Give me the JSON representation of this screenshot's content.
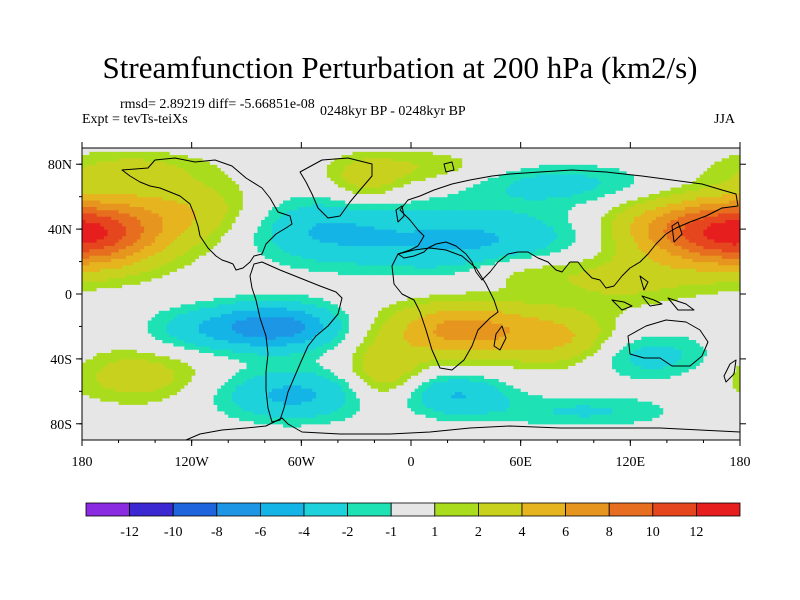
{
  "title": "Streamfunction Perturbation at 200 hPa (km2/s)",
  "stats": "rmsd= 2.89219 diff= -5.66851e-08",
  "experiment": "Expt = tevTs-teiXs",
  "period": "0248kyr BP - 0248kyr BP",
  "season": "JJA",
  "chart_data": {
    "type": "heatmap",
    "projection": "cylindrical-equidistant",
    "variable": "Streamfunction Perturbation at 200 hPa",
    "units": "km2/s",
    "xlim": [
      -180,
      180
    ],
    "ylim": [
      -90,
      90
    ],
    "x_ticks": [
      {
        "value": -180,
        "label": "180"
      },
      {
        "value": -120,
        "label": "120W"
      },
      {
        "value": -60,
        "label": "60W"
      },
      {
        "value": 0,
        "label": "0"
      },
      {
        "value": 60,
        "label": "60E"
      },
      {
        "value": 120,
        "label": "120E"
      },
      {
        "value": 180,
        "label": "180"
      }
    ],
    "y_ticks": [
      {
        "value": 80,
        "label": "80N"
      },
      {
        "value": 40,
        "label": "40N"
      },
      {
        "value": 0,
        "label": "0"
      },
      {
        "value": -40,
        "label": "40S"
      },
      {
        "value": -80,
        "label": "80S"
      }
    ],
    "colorbar": {
      "colors": [
        "#8a2be2",
        "#3c28d2",
        "#1e64dc",
        "#1e96e6",
        "#14b4e6",
        "#1ed2dc",
        "#1ee1b4",
        "#e6e6e6",
        "#aadc1e",
        "#c8d21e",
        "#e6b41e",
        "#e6961e",
        "#e66e1e",
        "#e6461e",
        "#e61e1e"
      ],
      "labels": [
        "-12",
        "-10",
        "-8",
        "-6",
        "-4",
        "-2",
        "-1",
        "1",
        "2",
        "4",
        "6",
        "8",
        "10",
        "12"
      ]
    },
    "levels": [
      -12,
      -10,
      -8,
      -6,
      -4,
      -2,
      -1,
      1,
      2,
      4,
      6,
      8,
      10,
      12
    ],
    "anomalies": [
      {
        "lon": -170,
        "lat": 38,
        "amp": 7.5,
        "slon": 28,
        "slat": 16
      },
      {
        "lon": -120,
        "lat": 52,
        "amp": 3,
        "slon": 25,
        "slat": 14
      },
      {
        "lon": -155,
        "lat": 78,
        "amp": 2.2,
        "slon": 30,
        "slat": 8
      },
      {
        "lon": -25,
        "lat": 70,
        "amp": 2.5,
        "slon": 14,
        "slat": 10
      },
      {
        "lon": 5,
        "lat": 78,
        "amp": 2,
        "slon": 30,
        "slat": 8
      },
      {
        "lon": -50,
        "lat": 40,
        "amp": -3.5,
        "slon": 28,
        "slat": 14
      },
      {
        "lon": 30,
        "lat": 33,
        "amp": -4.5,
        "slon": 45,
        "slat": 14
      },
      {
        "lon": 80,
        "lat": 68,
        "amp": -2.6,
        "slon": 38,
        "slat": 9
      },
      {
        "lon": 165,
        "lat": 38,
        "amp": 7,
        "slon": 28,
        "slat": 14
      },
      {
        "lon": 130,
        "lat": 42,
        "amp": 2.5,
        "slon": 22,
        "slat": 12
      },
      {
        "lon": 115,
        "lat": 10,
        "amp": 2.6,
        "slon": 30,
        "slat": 12
      },
      {
        "lon": 60,
        "lat": 15,
        "amp": 2,
        "slon": 22,
        "slat": 8
      },
      {
        "lon": -75,
        "lat": -20,
        "amp": -7.5,
        "slon": 25,
        "slat": 10
      },
      {
        "lon": -120,
        "lat": -22,
        "amp": -2.2,
        "slon": 20,
        "slat": 10
      },
      {
        "lon": -150,
        "lat": -50,
        "amp": 3,
        "slon": 26,
        "slat": 12
      },
      {
        "lon": -15,
        "lat": -48,
        "amp": 3.5,
        "slon": 14,
        "slat": 13
      },
      {
        "lon": 30,
        "lat": -22,
        "amp": 7,
        "slon": 30,
        "slat": 12
      },
      {
        "lon": 85,
        "lat": -28,
        "amp": 3.5,
        "slon": 20,
        "slat": 12
      },
      {
        "lon": -65,
        "lat": -62,
        "amp": -4.5,
        "slon": 28,
        "slat": 11
      },
      {
        "lon": 25,
        "lat": -62,
        "amp": -4,
        "slon": 20,
        "slat": 9
      },
      {
        "lon": 130,
        "lat": -38,
        "amp": -2.8,
        "slon": 25,
        "slat": 10
      },
      {
        "lon": 95,
        "lat": -72,
        "amp": -2.2,
        "slon": 35,
        "slat": 7
      }
    ]
  }
}
